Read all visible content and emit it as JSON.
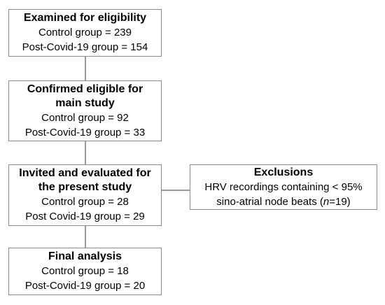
{
  "boxes": {
    "examined": {
      "title": "Examined for eligibility",
      "lines": [
        "Control group = 239",
        "Post-Covid-19 group = 154"
      ]
    },
    "confirmed": {
      "title_lines": [
        "Confirmed eligible for",
        "main study"
      ],
      "lines": [
        "Control group = 92",
        "Post-Covid-19 group = 33"
      ]
    },
    "invited": {
      "title_lines": [
        "Invited and evaluated for",
        "the present study"
      ],
      "lines": [
        "Control group = 28",
        "Post Covid-19 group = 29"
      ]
    },
    "exclusions": {
      "title": "Exclusions",
      "line1": "HRV recordings containing < 95%",
      "line2_prefix": "sino-atrial node beats (",
      "line2_italic": "n",
      "line2_suffix": "=19)"
    },
    "final": {
      "title": "Final analysis",
      "lines": [
        "Control group = 18",
        "Post-Covid-19 group = 20"
      ]
    }
  },
  "colors": {
    "border": "#8c8c8c",
    "connector": "#9a9a9a",
    "text": "#000000"
  }
}
